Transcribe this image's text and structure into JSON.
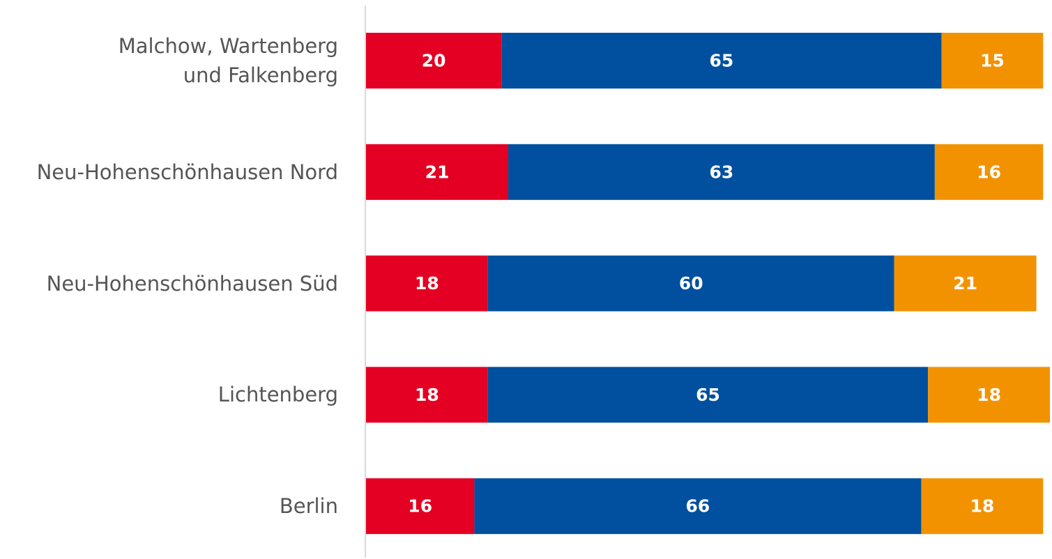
{
  "chart_data": {
    "type": "stacked_barh",
    "categories": [
      "Malchow, Wartenberg\nund Falkenberg",
      "Neu-Hohenschönhausen Nord",
      "Neu-Hohenschönhausen Süd",
      "Lichtenberg",
      "Berlin"
    ],
    "series": [
      {
        "color": "#e30022",
        "values": [
          20,
          21,
          18,
          18,
          16
        ]
      },
      {
        "color": "#00509f",
        "values": [
          65,
          63,
          60,
          65,
          66
        ]
      },
      {
        "color": "#f39200",
        "values": [
          15,
          16,
          21,
          18,
          18
        ]
      }
    ]
  }
}
